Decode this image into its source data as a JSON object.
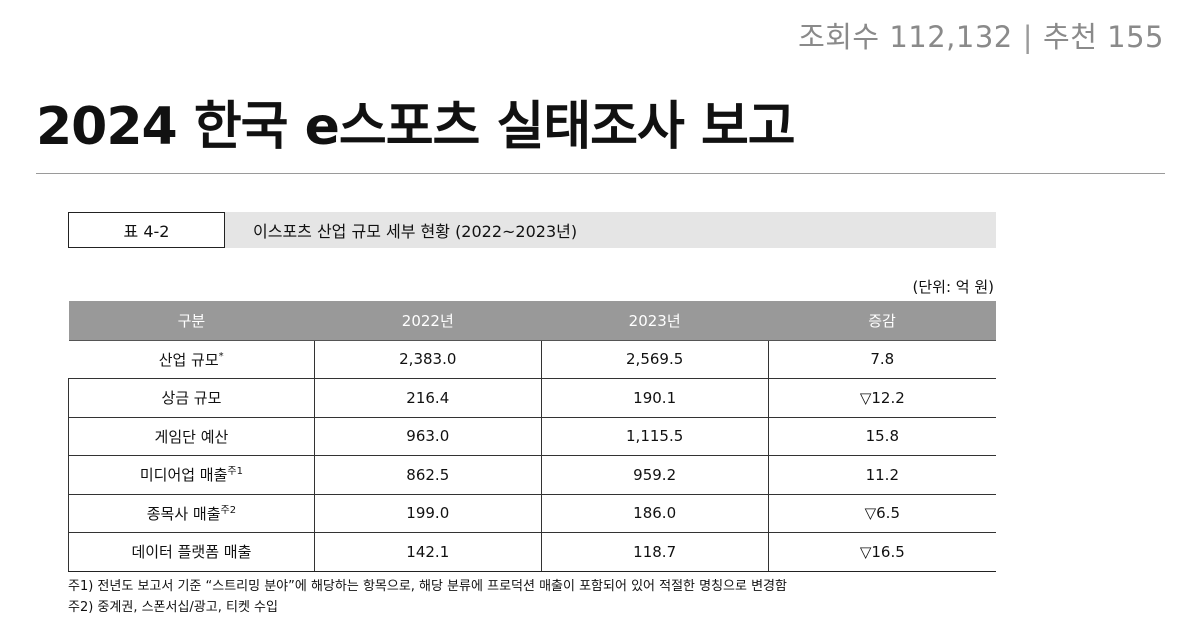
{
  "stats": {
    "views_label": "조회수",
    "views": "112,132",
    "recommend_label": "추천",
    "recommend": "155"
  },
  "title": "2024 한국 e스포츠 실태조사 보고",
  "table_label": {
    "number": "표 4-2",
    "caption": "이스포츠 산업 규모 세부 현황 (2022~2023년)"
  },
  "unit": "(단위: 억 원)",
  "table": {
    "headers": [
      "구분",
      "2022년",
      "2023년",
      "증감"
    ],
    "rows": [
      {
        "label": "산업 규모",
        "sup": "*",
        "y2022": "2,383.0",
        "y2023": "2,569.5",
        "change": "7.8"
      },
      {
        "label": "상금 규모",
        "sup": "",
        "y2022": "216.4",
        "y2023": "190.1",
        "change": "▽12.2"
      },
      {
        "label": "게임단 예산",
        "sup": "",
        "y2022": "963.0",
        "y2023": "1,115.5",
        "change": "15.8"
      },
      {
        "label": "미디어업 매출",
        "sup": "주1",
        "y2022": "862.5",
        "y2023": "959.2",
        "change": "11.2"
      },
      {
        "label": "종목사 매출",
        "sup": "주2",
        "y2022": "199.0",
        "y2023": "186.0",
        "change": "▽6.5"
      },
      {
        "label": "데이터 플랫폼 매출",
        "sup": "",
        "y2022": "142.1",
        "y2023": "118.7",
        "change": "▽16.5"
      }
    ]
  },
  "notes": [
    "주1) 전년도 보고서 기준 “스트리밍 분야”에 해당하는 항목으로, 해당 분류에 프로덕션 매출이 포함되어 있어 적절한 명칭으로 변경함",
    "주2) 중계권, 스폰서십/광고, 티켓 수입"
  ]
}
